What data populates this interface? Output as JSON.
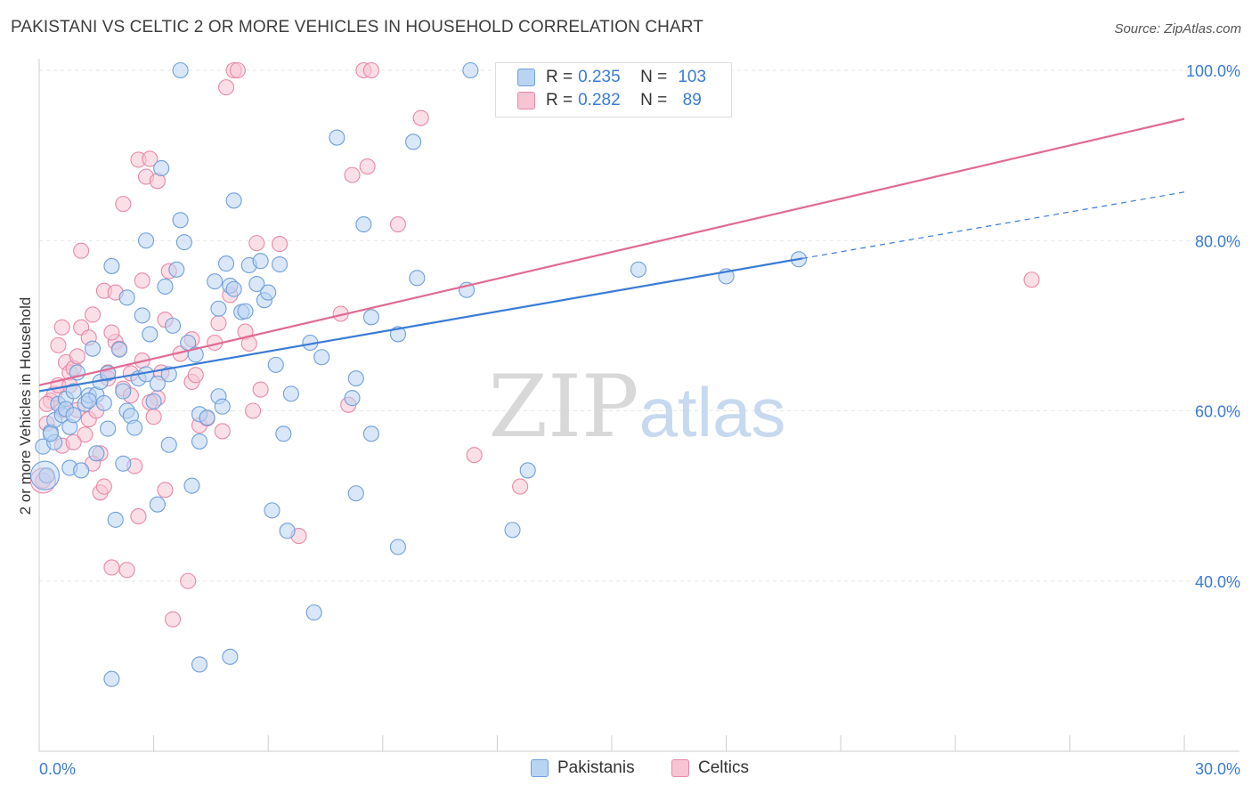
{
  "header": {
    "title": "PAKISTANI VS CELTIC 2 OR MORE VEHICLES IN HOUSEHOLD CORRELATION CHART",
    "source": "Source: ZipAtlas.com"
  },
  "watermark": {
    "zip": "ZIP",
    "atlas": "atlas"
  },
  "legend": {
    "rows": [
      {
        "r_label": "R =",
        "r_value": "0.235",
        "n_label": "N =",
        "n_value": "103"
      },
      {
        "r_label": "R =",
        "r_value": "0.282",
        "n_label": "N =",
        "n_value": "89"
      }
    ]
  },
  "bottom_legend": {
    "items": [
      "Pakistanis",
      "Celtics"
    ]
  },
  "colors": {
    "blue_fill": "#b9d3f2",
    "blue_stroke": "#6f9fdc",
    "blue_line": "#3a7bd5",
    "pink_fill": "#f7c4d4",
    "pink_stroke": "#e889a8",
    "pink_line": "#e06a93",
    "axis_label": "#3a7bd5",
    "grid": "#e6e6e6"
  },
  "chart_data": {
    "type": "scatter",
    "title": "PAKISTANI VS CELTIC 2 OR MORE VEHICLES IN HOUSEHOLD CORRELATION CHART",
    "xlabel": "",
    "ylabel": "2 or more Vehicles in Household",
    "xlim": [
      0,
      30
    ],
    "ylim": [
      20,
      100
    ],
    "x_tick_labels": [
      "0.0%",
      "30.0%"
    ],
    "y_ticks": [
      40,
      60,
      80,
      100
    ],
    "y_tick_labels": [
      "40.0%",
      "60.0%",
      "80.0%",
      "100.0%"
    ],
    "grid": true,
    "legend_position": "top-center",
    "series": [
      {
        "name": "Pakistanis",
        "color": "#6f9fdc",
        "r": 0.235,
        "n": 103,
        "trend": {
          "x0": 0,
          "y0": 62.3,
          "x1": 20,
          "y1": 77.9,
          "dashed_to_x": 30,
          "dashed_to_y": 85.7
        },
        "points": [
          [
            0.1,
            55.8
          ],
          [
            0.2,
            52.4
          ],
          [
            0.3,
            57.5
          ],
          [
            0.4,
            58.9
          ],
          [
            0.4,
            56.3
          ],
          [
            0.5,
            60.8
          ],
          [
            0.6,
            59.5
          ],
          [
            0.7,
            61.4
          ],
          [
            0.7,
            60.2
          ],
          [
            0.8,
            53.3
          ],
          [
            0.8,
            58.1
          ],
          [
            0.9,
            62.3
          ],
          [
            1.0,
            64.5
          ],
          [
            1.1,
            53.0
          ],
          [
            1.2,
            60.8
          ],
          [
            1.3,
            61.8
          ],
          [
            1.4,
            67.3
          ],
          [
            1.5,
            55.0
          ],
          [
            1.5,
            61.9
          ],
          [
            1.6,
            63.4
          ],
          [
            1.7,
            60.9
          ],
          [
            1.8,
            64.4
          ],
          [
            1.9,
            28.5
          ],
          [
            1.9,
            77.0
          ],
          [
            2.0,
            47.2
          ],
          [
            2.1,
            67.2
          ],
          [
            2.2,
            62.3
          ],
          [
            2.3,
            73.3
          ],
          [
            2.3,
            60.0
          ],
          [
            2.4,
            59.4
          ],
          [
            2.5,
            58.0
          ],
          [
            2.6,
            63.8
          ],
          [
            2.7,
            71.2
          ],
          [
            2.8,
            80.0
          ],
          [
            2.8,
            64.3
          ],
          [
            2.9,
            69.0
          ],
          [
            3.0,
            61.1
          ],
          [
            3.1,
            63.2
          ],
          [
            3.1,
            49.0
          ],
          [
            3.2,
            88.5
          ],
          [
            3.3,
            74.6
          ],
          [
            3.4,
            64.3
          ],
          [
            3.4,
            56.0
          ],
          [
            3.5,
            70.0
          ],
          [
            3.6,
            76.6
          ],
          [
            3.7,
            82.4
          ],
          [
            3.8,
            79.8
          ],
          [
            3.9,
            68.0
          ],
          [
            3.7,
            100.0
          ],
          [
            4.0,
            51.2
          ],
          [
            4.1,
            66.6
          ],
          [
            4.2,
            30.2
          ],
          [
            4.2,
            59.6
          ],
          [
            4.2,
            56.4
          ],
          [
            4.4,
            59.2
          ],
          [
            4.6,
            75.2
          ],
          [
            4.7,
            61.7
          ],
          [
            4.7,
            72.0
          ],
          [
            4.8,
            60.5
          ],
          [
            4.9,
            77.3
          ],
          [
            5.0,
            74.7
          ],
          [
            5.1,
            74.3
          ],
          [
            5.0,
            31.1
          ],
          [
            5.1,
            84.7
          ],
          [
            5.3,
            71.6
          ],
          [
            5.4,
            71.7
          ],
          [
            5.5,
            77.1
          ],
          [
            5.7,
            74.9
          ],
          [
            5.8,
            77.6
          ],
          [
            5.9,
            73.0
          ],
          [
            6.0,
            73.9
          ],
          [
            6.1,
            48.3
          ],
          [
            6.2,
            65.4
          ],
          [
            6.3,
            77.2
          ],
          [
            6.4,
            57.3
          ],
          [
            6.5,
            45.9
          ],
          [
            6.6,
            62.0
          ],
          [
            7.1,
            68.0
          ],
          [
            7.2,
            36.3
          ],
          [
            7.4,
            66.3
          ],
          [
            7.8,
            92.1
          ],
          [
            8.3,
            63.8
          ],
          [
            8.3,
            50.3
          ],
          [
            8.5,
            81.9
          ],
          [
            8.7,
            71.0
          ],
          [
            8.7,
            57.3
          ],
          [
            9.4,
            44.0
          ],
          [
            9.4,
            69.0
          ],
          [
            9.8,
            91.6
          ],
          [
            9.9,
            75.6
          ],
          [
            11.2,
            74.2
          ],
          [
            11.3,
            100.0
          ],
          [
            12.4,
            46.0
          ],
          [
            12.8,
            53.0
          ],
          [
            15.7,
            76.6
          ],
          [
            18.0,
            75.8
          ],
          [
            19.9,
            77.8
          ],
          [
            8.2,
            61.5
          ],
          [
            2.2,
            53.8
          ],
          [
            1.3,
            61.2
          ],
          [
            0.3,
            57.3
          ],
          [
            0.9,
            59.5
          ],
          [
            1.8,
            57.9
          ]
        ]
      },
      {
        "name": "Celtics",
        "color": "#e889a8",
        "r": 0.282,
        "n": 89,
        "trend": {
          "x0": 0,
          "y0": 63.0,
          "x1": 30,
          "y1": 94.3
        },
        "points": [
          [
            0.1,
            51.8
          ],
          [
            0.2,
            58.5
          ],
          [
            0.3,
            61.2
          ],
          [
            0.4,
            62.0
          ],
          [
            0.5,
            63.0
          ],
          [
            0.5,
            67.7
          ],
          [
            0.6,
            60.1
          ],
          [
            0.6,
            69.8
          ],
          [
            0.7,
            65.7
          ],
          [
            0.8,
            64.5
          ],
          [
            0.8,
            63.0
          ],
          [
            0.9,
            65.0
          ],
          [
            1.0,
            66.4
          ],
          [
            1.0,
            60.1
          ],
          [
            1.1,
            69.8
          ],
          [
            1.1,
            78.8
          ],
          [
            1.2,
            57.2
          ],
          [
            1.3,
            59.0
          ],
          [
            1.3,
            68.6
          ],
          [
            1.4,
            71.3
          ],
          [
            1.5,
            60.0
          ],
          [
            1.6,
            55.0
          ],
          [
            1.6,
            50.4
          ],
          [
            1.7,
            74.1
          ],
          [
            1.7,
            51.1
          ],
          [
            1.8,
            64.5
          ],
          [
            1.8,
            63.8
          ],
          [
            1.9,
            41.6
          ],
          [
            2.0,
            73.9
          ],
          [
            2.0,
            68.1
          ],
          [
            2.1,
            67.3
          ],
          [
            2.2,
            84.3
          ],
          [
            2.2,
            62.6
          ],
          [
            2.3,
            41.3
          ],
          [
            2.4,
            61.8
          ],
          [
            2.4,
            64.4
          ],
          [
            2.5,
            53.5
          ],
          [
            2.6,
            47.6
          ],
          [
            2.6,
            89.5
          ],
          [
            2.7,
            65.9
          ],
          [
            2.7,
            75.3
          ],
          [
            2.8,
            87.5
          ],
          [
            2.9,
            89.6
          ],
          [
            3.0,
            59.3
          ],
          [
            3.1,
            61.5
          ],
          [
            3.1,
            87.0
          ],
          [
            3.2,
            64.5
          ],
          [
            3.3,
            70.7
          ],
          [
            3.4,
            76.4
          ],
          [
            3.5,
            35.5
          ],
          [
            3.7,
            66.7
          ],
          [
            3.9,
            40.0
          ],
          [
            4.0,
            63.4
          ],
          [
            4.0,
            68.4
          ],
          [
            4.1,
            64.2
          ],
          [
            4.2,
            58.3
          ],
          [
            4.4,
            59.1
          ],
          [
            4.6,
            68.0
          ],
          [
            4.8,
            57.6
          ],
          [
            4.9,
            98.0
          ],
          [
            5.1,
            100.0
          ],
          [
            5.2,
            100.0
          ],
          [
            5.4,
            69.3
          ],
          [
            5.5,
            67.9
          ],
          [
            5.6,
            60.0
          ],
          [
            5.7,
            79.7
          ],
          [
            5.8,
            62.5
          ],
          [
            6.3,
            79.6
          ],
          [
            6.8,
            45.3
          ],
          [
            7.9,
            71.4
          ],
          [
            8.1,
            60.7
          ],
          [
            8.2,
            87.7
          ],
          [
            8.5,
            100.0
          ],
          [
            8.6,
            88.7
          ],
          [
            8.7,
            100.0
          ],
          [
            9.4,
            81.9
          ],
          [
            10.0,
            94.4
          ],
          [
            11.4,
            54.8
          ],
          [
            12.6,
            51.1
          ],
          [
            26.0,
            75.4
          ],
          [
            4.7,
            70.3
          ],
          [
            1.9,
            69.2
          ],
          [
            0.2,
            60.8
          ],
          [
            0.6,
            55.9
          ],
          [
            1.4,
            53.8
          ],
          [
            2.9,
            61.0
          ],
          [
            3.3,
            50.7
          ],
          [
            5.0,
            73.6
          ],
          [
            0.9,
            56.3
          ]
        ]
      }
    ]
  }
}
